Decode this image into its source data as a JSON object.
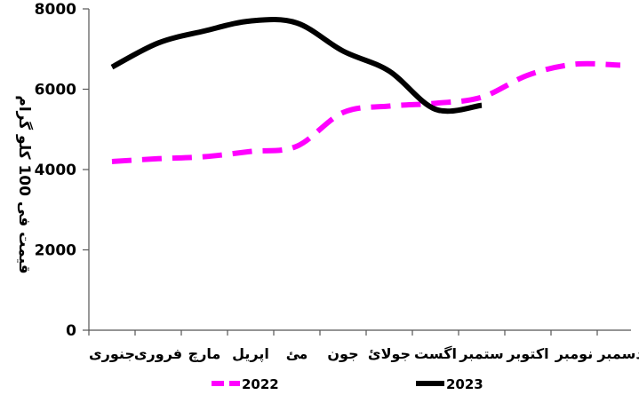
{
  "chart_data": {
    "type": "line",
    "categories": [
      "جنوری",
      "فروری",
      "مارچ",
      "اپریل",
      "مئ",
      "جون",
      "جولائ",
      "اگست",
      "ستمبر",
      "اکتوبر",
      "نومبر",
      "دسمبر"
    ],
    "ylabel": "قیمت فی 100 کلو گرام",
    "ylim": [
      0,
      8000
    ],
    "yticks": [
      0,
      2000,
      4000,
      6000,
      8000
    ],
    "legend_position": "bottom",
    "series": [
      {
        "name": "2022",
        "color": "#ff00ff",
        "style": "dashed",
        "values": [
          4200,
          4270,
          4320,
          4450,
          4580,
          5420,
          5580,
          5650,
          5800,
          6350,
          6620,
          6600
        ]
      },
      {
        "name": "2023",
        "color": "#000000",
        "style": "solid",
        "values": [
          6550,
          7150,
          7450,
          7700,
          7650,
          6950,
          6450,
          5500,
          5600,
          null,
          null,
          null
        ]
      }
    ]
  }
}
